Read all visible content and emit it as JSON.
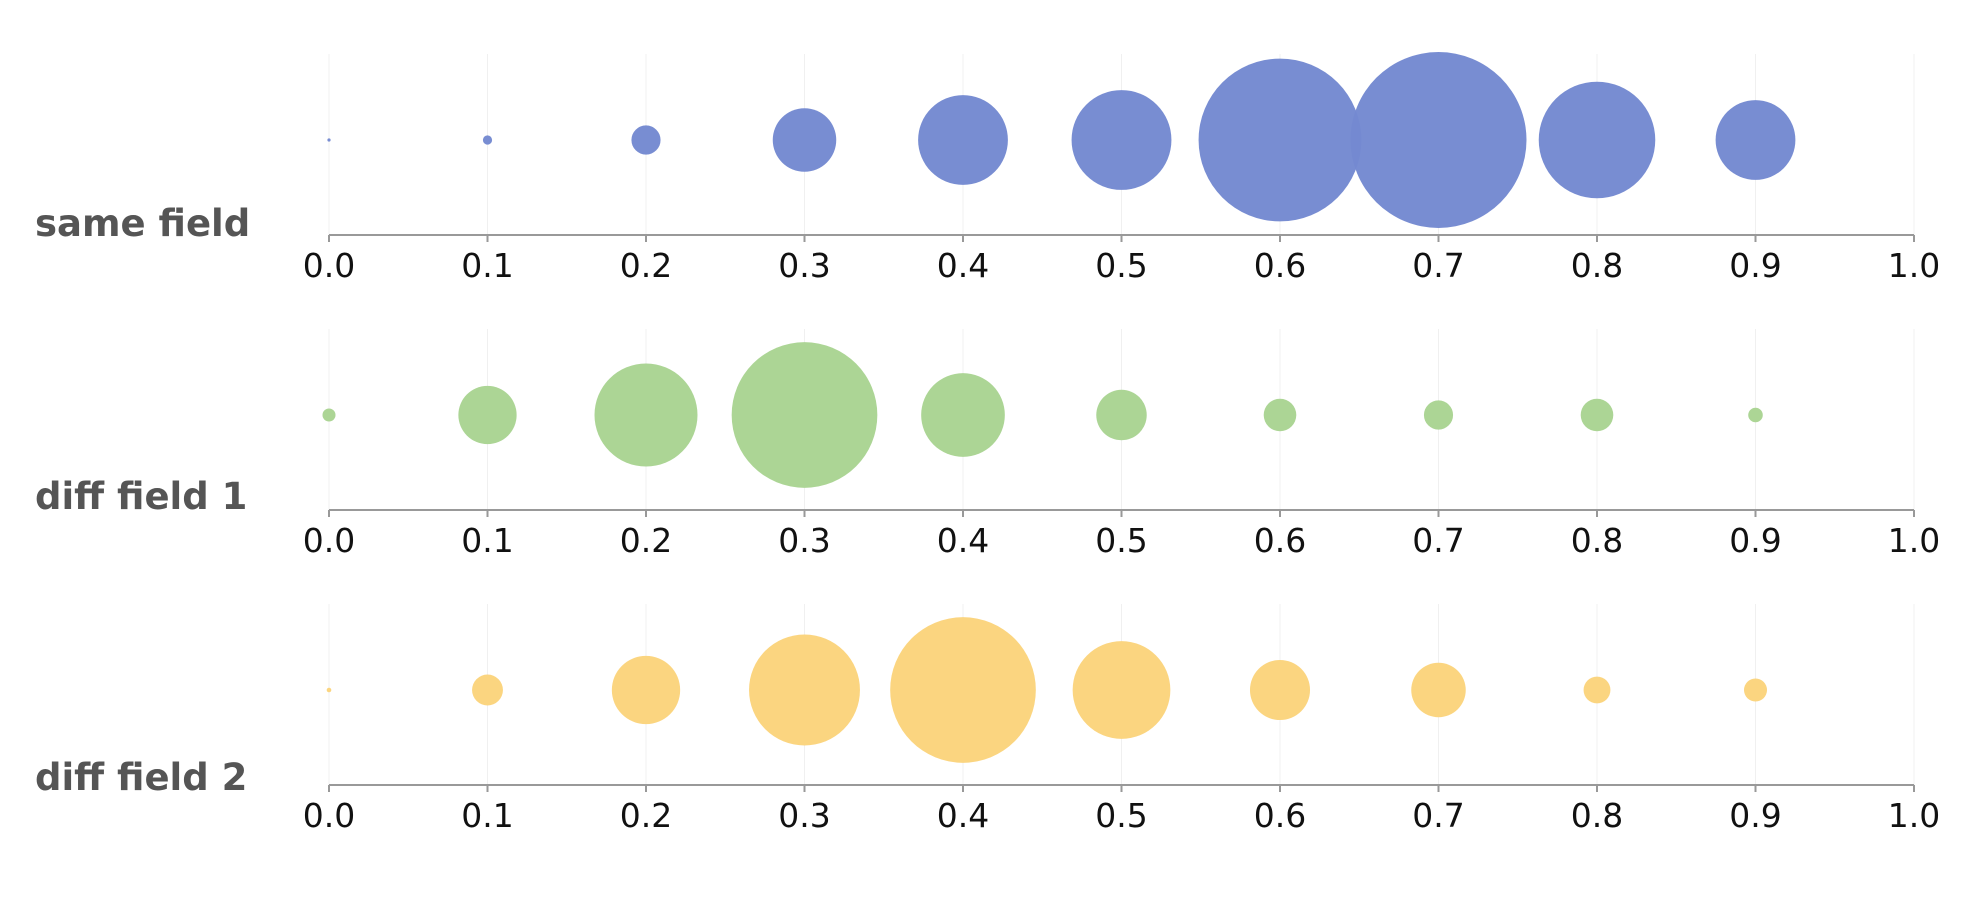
{
  "chart_data": {
    "type": "scatter",
    "xlim": [
      0,
      1
    ],
    "x_ticks": [
      "0.0",
      "0.1",
      "0.2",
      "0.3",
      "0.4",
      "0.5",
      "0.6",
      "0.7",
      "0.8",
      "0.9",
      "1.0"
    ],
    "grid": true,
    "size_encoding": "bubble area",
    "x": [
      0,
      0.1,
      0.2,
      0.3,
      0.4,
      0.5,
      0.6,
      0.7,
      0.8,
      0.9
    ],
    "series": [
      {
        "name": "same field",
        "color": "#7489d1",
        "sizes": [
          0.0,
          0.4,
          4,
          19,
          38,
          47,
          125,
          146,
          64,
          30
        ]
      },
      {
        "name": "diff field 1",
        "color": "#a9d492",
        "sizes": [
          0.8,
          16,
          50,
          100,
          33,
          12,
          5,
          4,
          5,
          1
        ]
      },
      {
        "name": "diff field 2",
        "color": "#fbd47c",
        "sizes": [
          0.1,
          4.5,
          22,
          58,
          100,
          45,
          17,
          14,
          3.4,
          2.5
        ]
      }
    ]
  }
}
